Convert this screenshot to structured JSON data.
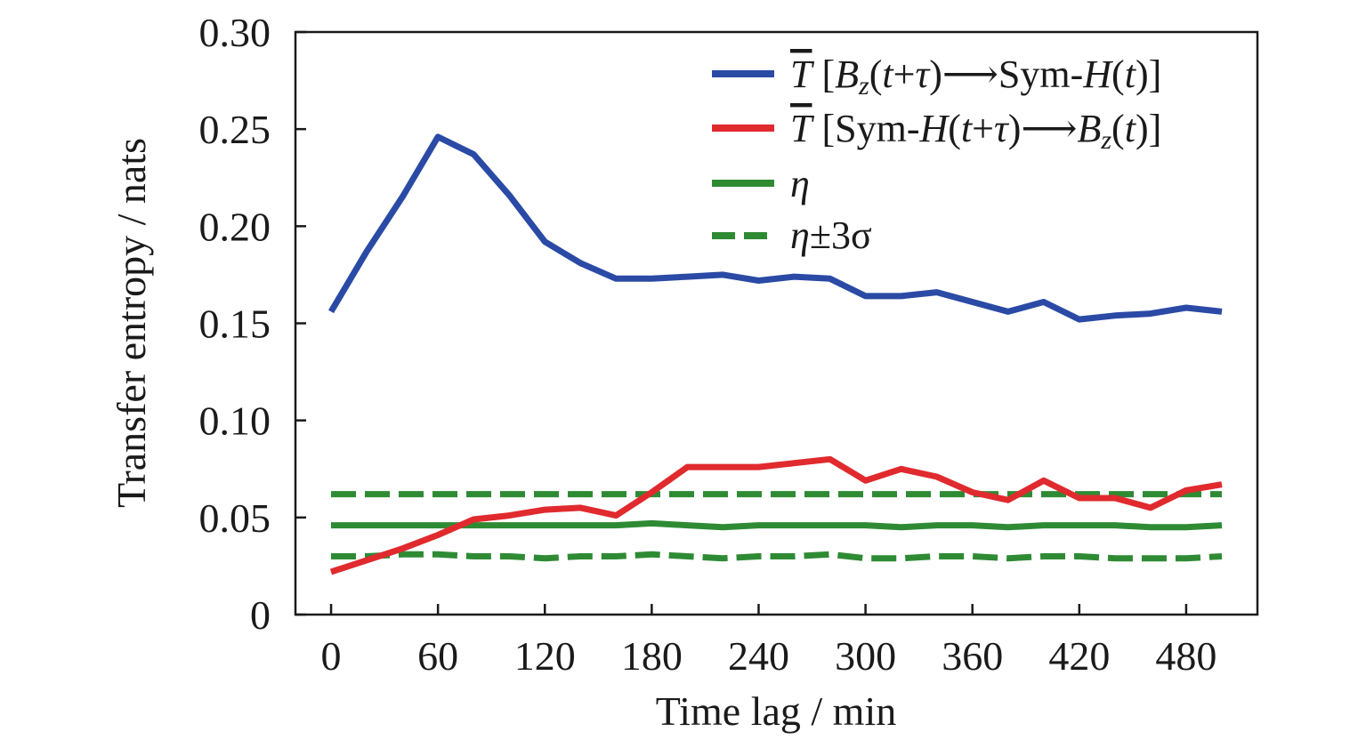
{
  "chart_data": {
    "type": "line",
    "title": "",
    "xlabel": "Time lag / min",
    "ylabel": "Transfer entropy / nats",
    "xlim": [
      -20,
      520
    ],
    "ylim": [
      0,
      0.3
    ],
    "xticks": [
      0,
      60,
      120,
      180,
      240,
      300,
      360,
      420,
      480
    ],
    "xtick_labels": [
      "0",
      "60",
      "120",
      "180",
      "240",
      "300",
      "360",
      "420",
      "480"
    ],
    "yticks": [
      0,
      0.05,
      0.1,
      0.15,
      0.2,
      0.25,
      0.3
    ],
    "ytick_labels": [
      "0",
      "0.05",
      "0.10",
      "0.15",
      "0.20",
      "0.25",
      "0.30"
    ],
    "grid": false,
    "legend_position": "top-right",
    "x": [
      0,
      20,
      40,
      60,
      80,
      100,
      120,
      140,
      160,
      180,
      200,
      220,
      240,
      260,
      280,
      300,
      320,
      340,
      360,
      380,
      400,
      420,
      440,
      460,
      480,
      500
    ],
    "series": [
      {
        "name": "T̄ [Bz(t+τ)→Sym-H(t)]",
        "color": "#2a4aa5",
        "style": "solid",
        "values": [
          0.156,
          0.187,
          0.215,
          0.246,
          0.237,
          0.216,
          0.192,
          0.181,
          0.173,
          0.173,
          0.174,
          0.175,
          0.172,
          0.174,
          0.173,
          0.164,
          0.164,
          0.166,
          0.161,
          0.156,
          0.161,
          0.152,
          0.154,
          0.155,
          0.158,
          0.156
        ]
      },
      {
        "name": "T̄ [Sym-H(t+τ)→Bz(t)]",
        "color": "#e02a2e",
        "style": "solid",
        "values": [
          0.022,
          0.028,
          0.034,
          0.041,
          0.049,
          0.051,
          0.054,
          0.055,
          0.051,
          0.063,
          0.076,
          0.076,
          0.076,
          0.078,
          0.08,
          0.069,
          0.075,
          0.071,
          0.063,
          0.059,
          0.069,
          0.06,
          0.06,
          0.055,
          0.064,
          0.067
        ]
      },
      {
        "name": "η",
        "color": "#2e8b34",
        "style": "solid",
        "values": [
          0.046,
          0.046,
          0.046,
          0.046,
          0.046,
          0.046,
          0.046,
          0.046,
          0.046,
          0.047,
          0.046,
          0.045,
          0.046,
          0.046,
          0.046,
          0.046,
          0.045,
          0.046,
          0.046,
          0.045,
          0.046,
          0.046,
          0.046,
          0.045,
          0.045,
          0.046
        ]
      },
      {
        "name": "η±3σ",
        "color": "#2e8b34",
        "style": "dashed",
        "values": [
          0.062,
          0.062,
          0.062,
          0.062,
          0.062,
          0.062,
          0.062,
          0.062,
          0.062,
          0.062,
          0.062,
          0.062,
          0.062,
          0.062,
          0.062,
          0.062,
          0.062,
          0.062,
          0.062,
          0.062,
          0.062,
          0.062,
          0.062,
          0.062,
          0.062,
          0.062
        ],
        "values_lower": [
          0.03,
          0.03,
          0.031,
          0.031,
          0.03,
          0.03,
          0.029,
          0.03,
          0.03,
          0.031,
          0.03,
          0.029,
          0.03,
          0.03,
          0.031,
          0.029,
          0.029,
          0.03,
          0.03,
          0.029,
          0.03,
          0.03,
          0.029,
          0.029,
          0.029,
          0.03
        ]
      }
    ]
  }
}
